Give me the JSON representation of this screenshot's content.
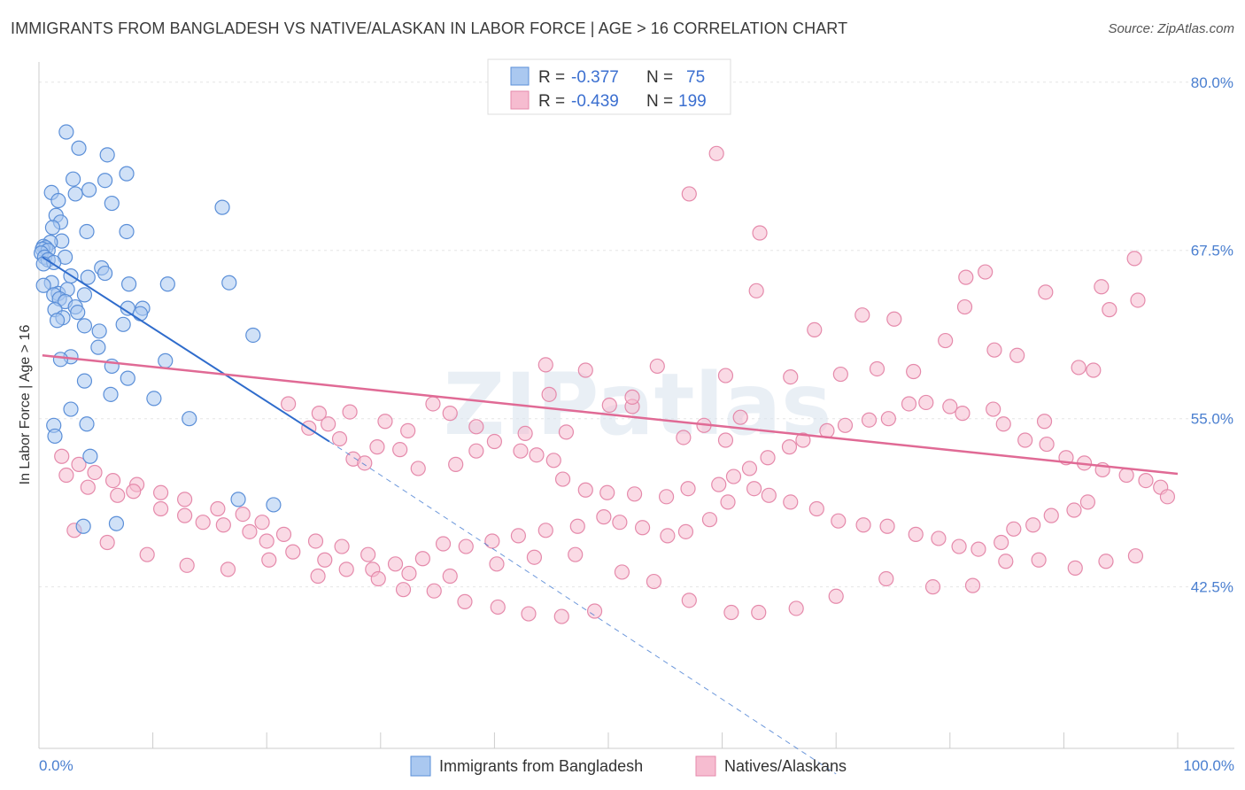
{
  "title": "IMMIGRANTS FROM BANGLADESH VS NATIVE/ALASKAN IN LABOR FORCE | AGE > 16 CORRELATION CHART",
  "source": "Source: ZipAtlas.com",
  "watermark": "ZIPatlas",
  "colors": {
    "blue_fill": "#aac8f0",
    "blue_stroke": "#5b8fd8",
    "blue_line": "#2f6ccc",
    "pink_fill": "#f6bcd0",
    "pink_stroke": "#e58aab",
    "pink_line": "#e06a95",
    "tick_label": "#4a7fd0",
    "grid": "#e6e6e6"
  },
  "legend": {
    "r_label": "R =",
    "n_label": "N =",
    "entries": [
      {
        "r": "-0.377",
        "n": "75"
      },
      {
        "r": "-0.439",
        "n": "199"
      }
    ]
  },
  "chart_data": {
    "type": "scatter",
    "xlabel": "",
    "ylabel": "In Labor Force | Age > 16",
    "xlim": [
      0,
      100
    ],
    "ylim": [
      30.5,
      81.5
    ],
    "x_tick_labels": [
      {
        "value": 0,
        "label": "0.0%"
      },
      {
        "value": 100,
        "label": "100.0%"
      }
    ],
    "y_ticks": [
      {
        "value": 42.5,
        "label": "42.5%"
      },
      {
        "value": 55.0,
        "label": "55.0%"
      },
      {
        "value": 67.5,
        "label": "67.5%"
      },
      {
        "value": 80.0,
        "label": "80.0%"
      }
    ],
    "grid": true,
    "legend_position": "top-center",
    "series": [
      {
        "name": "Immigrants from Bangladesh",
        "color": "#aac8f0",
        "trend": {
          "x": [
            0.3,
            25.5
          ],
          "y": [
            67.0,
            53.3
          ]
        },
        "trend_extension": {
          "x": [
            25.5,
            70.0
          ],
          "y": [
            53.3,
            28.6
          ]
        },
        "points": [
          [
            2.4,
            76.3
          ],
          [
            3.5,
            75.1
          ],
          [
            6.0,
            74.6
          ],
          [
            7.7,
            73.2
          ],
          [
            3.0,
            72.8
          ],
          [
            5.8,
            72.7
          ],
          [
            4.4,
            72.0
          ],
          [
            1.1,
            71.8
          ],
          [
            3.2,
            71.7
          ],
          [
            1.7,
            71.2
          ],
          [
            6.4,
            71.0
          ],
          [
            16.1,
            70.7
          ],
          [
            1.5,
            70.1
          ],
          [
            1.9,
            69.6
          ],
          [
            1.2,
            69.2
          ],
          [
            7.7,
            68.9
          ],
          [
            4.2,
            68.9
          ],
          [
            2.0,
            68.2
          ],
          [
            1.0,
            68.1
          ],
          [
            0.4,
            67.8
          ],
          [
            0.6,
            67.7
          ],
          [
            0.3,
            67.6
          ],
          [
            0.8,
            67.5
          ],
          [
            0.2,
            67.3
          ],
          [
            2.3,
            67.0
          ],
          [
            0.5,
            67.0
          ],
          [
            0.8,
            66.8
          ],
          [
            1.3,
            66.6
          ],
          [
            0.4,
            66.5
          ],
          [
            5.5,
            66.2
          ],
          [
            5.8,
            65.8
          ],
          [
            2.8,
            65.6
          ],
          [
            4.3,
            65.5
          ],
          [
            1.1,
            65.1
          ],
          [
            7.9,
            65.0
          ],
          [
            11.3,
            65.0
          ],
          [
            0.4,
            64.9
          ],
          [
            16.7,
            65.1
          ],
          [
            1.7,
            64.3
          ],
          [
            1.3,
            64.2
          ],
          [
            2.5,
            64.6
          ],
          [
            4.0,
            64.2
          ],
          [
            1.8,
            63.9
          ],
          [
            2.3,
            63.7
          ],
          [
            3.2,
            63.3
          ],
          [
            7.8,
            63.2
          ],
          [
            9.1,
            63.2
          ],
          [
            1.4,
            63.1
          ],
          [
            3.4,
            62.9
          ],
          [
            2.1,
            62.5
          ],
          [
            1.6,
            62.3
          ],
          [
            7.4,
            62.0
          ],
          [
            4.0,
            61.9
          ],
          [
            5.3,
            61.5
          ],
          [
            18.8,
            61.2
          ],
          [
            5.2,
            60.3
          ],
          [
            2.8,
            59.6
          ],
          [
            1.9,
            59.4
          ],
          [
            11.1,
            59.3
          ],
          [
            6.4,
            58.9
          ],
          [
            7.8,
            58.0
          ],
          [
            4.0,
            57.8
          ],
          [
            6.3,
            56.8
          ],
          [
            2.8,
            55.7
          ],
          [
            1.3,
            54.5
          ],
          [
            4.2,
            54.6
          ],
          [
            1.4,
            53.7
          ],
          [
            4.5,
            52.2
          ],
          [
            17.5,
            49.0
          ],
          [
            20.6,
            48.6
          ],
          [
            3.9,
            47.0
          ],
          [
            10.1,
            56.5
          ],
          [
            8.9,
            62.8
          ],
          [
            13.2,
            55.0
          ],
          [
            6.8,
            47.2
          ]
        ]
      },
      {
        "name": "Natives/Alaskans",
        "color": "#f6bcd0",
        "trend": {
          "x": [
            0.3,
            100.0
          ],
          "y": [
            59.7,
            50.9
          ]
        },
        "points": [
          [
            59.5,
            74.7
          ],
          [
            57.1,
            71.7
          ],
          [
            63.3,
            68.8
          ],
          [
            96.2,
            66.9
          ],
          [
            83.1,
            65.9
          ],
          [
            81.4,
            65.5
          ],
          [
            93.3,
            64.8
          ],
          [
            88.4,
            64.4
          ],
          [
            63.0,
            64.5
          ],
          [
            96.5,
            63.8
          ],
          [
            81.3,
            63.3
          ],
          [
            94.0,
            63.1
          ],
          [
            72.3,
            62.7
          ],
          [
            75.1,
            62.4
          ],
          [
            68.1,
            61.6
          ],
          [
            79.6,
            60.8
          ],
          [
            83.9,
            60.1
          ],
          [
            85.9,
            59.7
          ],
          [
            91.3,
            58.8
          ],
          [
            92.6,
            58.6
          ],
          [
            66.0,
            58.1
          ],
          [
            70.4,
            58.3
          ],
          [
            73.6,
            58.7
          ],
          [
            76.8,
            58.5
          ],
          [
            60.3,
            58.2
          ],
          [
            54.3,
            58.9
          ],
          [
            44.5,
            59.0
          ],
          [
            48.0,
            58.6
          ],
          [
            44.8,
            56.8
          ],
          [
            50.1,
            56.0
          ],
          [
            52.1,
            55.9
          ],
          [
            61.6,
            55.1
          ],
          [
            52.1,
            56.6
          ],
          [
            88.3,
            54.8
          ],
          [
            58.4,
            54.5
          ],
          [
            56.6,
            53.6
          ],
          [
            60.3,
            53.4
          ],
          [
            46.3,
            54.0
          ],
          [
            36.1,
            55.4
          ],
          [
            34.6,
            56.1
          ],
          [
            38.4,
            54.4
          ],
          [
            40.0,
            53.3
          ],
          [
            42.7,
            53.9
          ],
          [
            27.3,
            55.5
          ],
          [
            30.4,
            54.8
          ],
          [
            32.4,
            54.1
          ],
          [
            29.7,
            52.9
          ],
          [
            31.7,
            52.7
          ],
          [
            21.9,
            56.1
          ],
          [
            24.6,
            55.4
          ],
          [
            25.4,
            54.6
          ],
          [
            23.7,
            54.3
          ],
          [
            26.4,
            53.5
          ],
          [
            27.6,
            52.0
          ],
          [
            28.6,
            51.7
          ],
          [
            33.3,
            51.3
          ],
          [
            36.6,
            51.6
          ],
          [
            38.4,
            52.6
          ],
          [
            42.3,
            52.6
          ],
          [
            43.7,
            52.3
          ],
          [
            45.2,
            51.9
          ],
          [
            46.0,
            50.5
          ],
          [
            48.0,
            49.7
          ],
          [
            49.9,
            49.5
          ],
          [
            52.3,
            49.4
          ],
          [
            55.1,
            49.2
          ],
          [
            57.0,
            49.8
          ],
          [
            59.7,
            50.1
          ],
          [
            61.0,
            50.7
          ],
          [
            62.4,
            51.3
          ],
          [
            64.0,
            52.1
          ],
          [
            65.9,
            52.9
          ],
          [
            67.1,
            53.4
          ],
          [
            69.2,
            54.1
          ],
          [
            70.8,
            54.5
          ],
          [
            72.9,
            54.9
          ],
          [
            74.6,
            55.0
          ],
          [
            76.4,
            56.1
          ],
          [
            77.9,
            56.2
          ],
          [
            80.0,
            55.9
          ],
          [
            81.1,
            55.4
          ],
          [
            83.8,
            55.7
          ],
          [
            84.7,
            54.6
          ],
          [
            86.6,
            53.4
          ],
          [
            88.5,
            53.1
          ],
          [
            90.2,
            52.1
          ],
          [
            91.8,
            51.7
          ],
          [
            93.4,
            51.2
          ],
          [
            95.5,
            50.8
          ],
          [
            97.2,
            50.4
          ],
          [
            98.5,
            49.9
          ],
          [
            99.1,
            49.2
          ],
          [
            92.1,
            48.8
          ],
          [
            90.9,
            48.2
          ],
          [
            88.9,
            47.8
          ],
          [
            87.3,
            47.1
          ],
          [
            85.6,
            46.8
          ],
          [
            84.5,
            45.8
          ],
          [
            82.5,
            45.3
          ],
          [
            80.8,
            45.5
          ],
          [
            79.0,
            46.1
          ],
          [
            77.0,
            46.4
          ],
          [
            74.5,
            47.0
          ],
          [
            72.4,
            47.1
          ],
          [
            70.2,
            47.4
          ],
          [
            68.3,
            48.3
          ],
          [
            66.0,
            48.8
          ],
          [
            64.1,
            49.3
          ],
          [
            62.8,
            49.8
          ],
          [
            60.5,
            48.8
          ],
          [
            58.9,
            47.5
          ],
          [
            56.8,
            46.6
          ],
          [
            55.2,
            46.3
          ],
          [
            53.0,
            46.9
          ],
          [
            51.0,
            47.3
          ],
          [
            49.6,
            47.7
          ],
          [
            47.3,
            47.0
          ],
          [
            44.5,
            46.7
          ],
          [
            42.1,
            46.3
          ],
          [
            39.8,
            45.9
          ],
          [
            37.5,
            45.5
          ],
          [
            35.5,
            45.7
          ],
          [
            33.7,
            44.6
          ],
          [
            31.3,
            44.2
          ],
          [
            28.9,
            44.9
          ],
          [
            26.6,
            45.5
          ],
          [
            24.3,
            45.9
          ],
          [
            21.5,
            46.4
          ],
          [
            19.6,
            47.3
          ],
          [
            17.9,
            47.9
          ],
          [
            15.7,
            48.3
          ],
          [
            12.8,
            49.0
          ],
          [
            10.7,
            49.5
          ],
          [
            8.6,
            50.1
          ],
          [
            6.5,
            50.4
          ],
          [
            4.9,
            51.0
          ],
          [
            3.5,
            51.6
          ],
          [
            2.0,
            52.2
          ],
          [
            96.3,
            44.8
          ],
          [
            93.7,
            44.4
          ],
          [
            91.0,
            43.9
          ],
          [
            87.8,
            44.5
          ],
          [
            84.9,
            44.4
          ],
          [
            82.0,
            42.6
          ],
          [
            78.5,
            42.5
          ],
          [
            74.4,
            43.1
          ],
          [
            70.0,
            41.8
          ],
          [
            66.5,
            40.9
          ],
          [
            63.2,
            40.6
          ],
          [
            60.8,
            40.6
          ],
          [
            57.1,
            41.5
          ],
          [
            54.0,
            42.9
          ],
          [
            51.2,
            43.6
          ],
          [
            47.1,
            44.9
          ],
          [
            43.5,
            44.7
          ],
          [
            40.2,
            44.2
          ],
          [
            36.1,
            43.3
          ],
          [
            32.5,
            43.5
          ],
          [
            29.3,
            43.8
          ],
          [
            24.5,
            43.3
          ],
          [
            20.2,
            44.5
          ],
          [
            16.6,
            43.8
          ],
          [
            13.0,
            44.1
          ],
          [
            9.5,
            44.9
          ],
          [
            6.0,
            45.8
          ],
          [
            3.1,
            46.7
          ],
          [
            2.4,
            50.8
          ],
          [
            4.3,
            49.9
          ],
          [
            6.9,
            49.3
          ],
          [
            8.3,
            49.6
          ],
          [
            10.7,
            48.3
          ],
          [
            12.8,
            47.8
          ],
          [
            14.4,
            47.3
          ],
          [
            16.2,
            47.1
          ],
          [
            18.5,
            46.6
          ],
          [
            20.0,
            45.9
          ],
          [
            22.3,
            45.1
          ],
          [
            25.1,
            44.5
          ],
          [
            27.0,
            43.8
          ],
          [
            29.8,
            43.1
          ],
          [
            32.0,
            42.3
          ],
          [
            34.7,
            42.2
          ],
          [
            37.4,
            41.4
          ],
          [
            40.3,
            41.0
          ],
          [
            43.0,
            40.5
          ],
          [
            45.9,
            40.3
          ],
          [
            48.8,
            40.7
          ]
        ]
      }
    ]
  },
  "bottom_legend": [
    {
      "label": "Immigrants from Bangladesh"
    },
    {
      "label": "Natives/Alaskans"
    }
  ]
}
